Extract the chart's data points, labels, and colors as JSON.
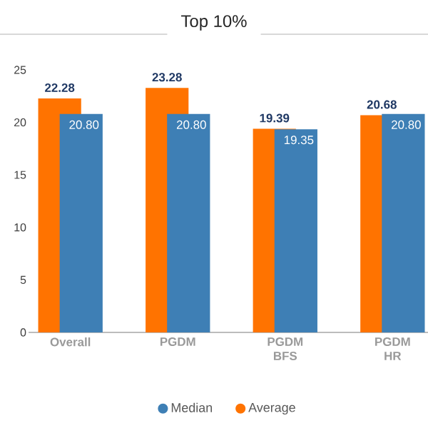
{
  "chart_data": {
    "type": "bar",
    "title": "Top 10%",
    "categories": [
      "Overall",
      "PGDM",
      "PGDM BFS",
      "PGDM HR"
    ],
    "series": [
      {
        "name": "Average",
        "color": "#ff7300",
        "values": [
          22.28,
          23.28,
          19.39,
          20.68
        ],
        "value_labels": [
          "22.28",
          "23.28",
          "19.39",
          "20.68"
        ]
      },
      {
        "name": "Median",
        "color": "#3e7fb5",
        "values": [
          20.8,
          20.8,
          19.35,
          20.8
        ],
        "value_labels": [
          "20.80",
          "20.80",
          "19.35",
          "20.80"
        ]
      }
    ],
    "ylim": [
      0,
      25
    ],
    "yticks": [
      0,
      5,
      10,
      15,
      20,
      25
    ],
    "grid": false,
    "legend": "bottom"
  }
}
